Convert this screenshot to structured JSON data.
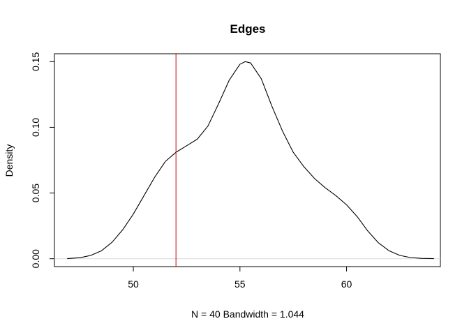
{
  "chart_data": {
    "type": "line",
    "title": "Edges",
    "xlabel": "N = 40   Bandwidth = 1.044",
    "ylabel": "Density",
    "xlim": [
      46.3,
      64.4
    ],
    "ylim": [
      -0.006,
      0.156
    ],
    "x_ticks": [
      50,
      55,
      60
    ],
    "x_tick_labels": [
      "50",
      "55",
      "60"
    ],
    "y_ticks": [
      0.0,
      0.05,
      0.1,
      0.15
    ],
    "y_tick_labels": [
      "0.00",
      "0.05",
      "0.10",
      "0.15"
    ],
    "grid": false,
    "zero_line_color": "#d9d9d9",
    "series": [
      {
        "color": "#000000",
        "x": [
          46.9,
          47.5,
          48.0,
          48.5,
          49.0,
          49.5,
          50.0,
          50.5,
          51.0,
          51.5,
          52.0,
          52.5,
          53.0,
          53.5,
          54.0,
          54.5,
          55.0,
          55.25,
          55.5,
          56.0,
          56.5,
          57.0,
          57.5,
          58.0,
          58.5,
          59.0,
          59.5,
          60.0,
          60.5,
          61.0,
          61.5,
          62.0,
          62.5,
          63.0,
          63.5,
          64.1
        ],
        "y": [
          0.0001,
          0.0008,
          0.0025,
          0.006,
          0.0125,
          0.022,
          0.034,
          0.048,
          0.062,
          0.074,
          0.081,
          0.086,
          0.091,
          0.101,
          0.118,
          0.136,
          0.148,
          0.15,
          0.149,
          0.137,
          0.116,
          0.097,
          0.081,
          0.07,
          0.061,
          0.054,
          0.048,
          0.041,
          0.032,
          0.021,
          0.012,
          0.006,
          0.0025,
          0.0009,
          0.0003,
          5e-05
        ]
      }
    ],
    "vline": {
      "x": 52.0,
      "color": "#cc0000"
    }
  }
}
